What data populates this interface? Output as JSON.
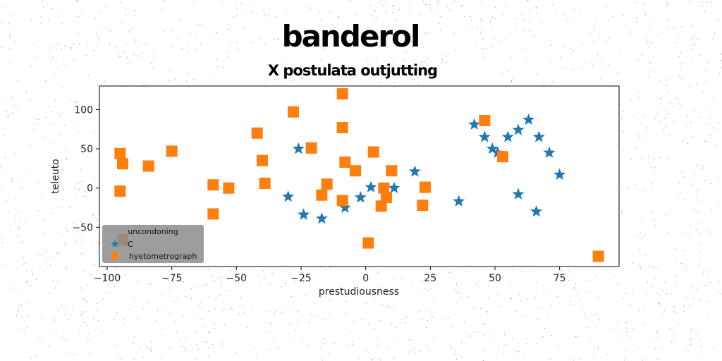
{
  "chart_data": {
    "type": "scatter",
    "title": "banderol",
    "subtitle": "X postulata outjutting",
    "xlabel": "prestudiousness",
    "ylabel": "teleuto",
    "xlim": [
      -103,
      98
    ],
    "ylim": [
      -100,
      130
    ],
    "xticks": [
      -100,
      -75,
      -50,
      -25,
      0,
      25,
      50,
      75
    ],
    "yticks": [
      -50,
      0,
      50,
      100
    ],
    "grid": false,
    "legend": {
      "title": "uncondoning",
      "placement": "bottom-left"
    },
    "series": [
      {
        "name": "C",
        "marker": "star",
        "color": "#1f77b4",
        "points": [
          [
            -26,
            50
          ],
          [
            -30,
            -11
          ],
          [
            -24,
            -34
          ],
          [
            -17,
            -39
          ],
          [
            -8,
            -25
          ],
          [
            -2,
            -12
          ],
          [
            2,
            1
          ],
          [
            11,
            0
          ],
          [
            19,
            21
          ],
          [
            36,
            -17
          ],
          [
            42,
            81
          ],
          [
            46,
            65
          ],
          [
            49,
            50
          ],
          [
            51,
            45
          ],
          [
            55,
            65
          ],
          [
            59,
            74
          ],
          [
            63,
            87
          ],
          [
            67,
            65
          ],
          [
            71,
            45
          ],
          [
            75,
            17
          ],
          [
            59,
            -8
          ],
          [
            66,
            -30
          ]
        ]
      },
      {
        "name": "hyetometrograph",
        "marker": "square",
        "color": "#ff7f0e",
        "points": [
          [
            -95,
            44
          ],
          [
            -94,
            31
          ],
          [
            -95,
            -4
          ],
          [
            -84,
            28
          ],
          [
            -75,
            47
          ],
          [
            -94,
            -66
          ],
          [
            -59,
            4
          ],
          [
            -59,
            -33
          ],
          [
            -53,
            0
          ],
          [
            -42,
            70
          ],
          [
            -40,
            35
          ],
          [
            -39,
            6
          ],
          [
            -28,
            97
          ],
          [
            -21,
            51
          ],
          [
            -17,
            -9
          ],
          [
            -15,
            5
          ],
          [
            -9,
            120
          ],
          [
            -9,
            77
          ],
          [
            -8,
            33
          ],
          [
            -9,
            -16
          ],
          [
            -4,
            22
          ],
          [
            3,
            46
          ],
          [
            7,
            0
          ],
          [
            6,
            -23
          ],
          [
            8,
            -12
          ],
          [
            10,
            22
          ],
          [
            1,
            -70
          ],
          [
            23,
            1
          ],
          [
            22,
            -22
          ],
          [
            46,
            86
          ],
          [
            53,
            40
          ],
          [
            90,
            -87
          ]
        ]
      }
    ]
  }
}
